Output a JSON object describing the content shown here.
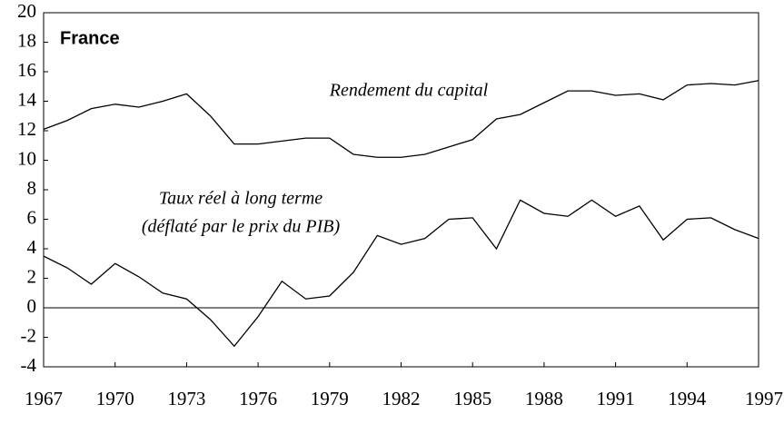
{
  "chart_data": {
    "type": "line",
    "title": "France",
    "annotations": [
      "Rendement du capital",
      "Taux réel à long terme",
      "(déflaté par le prix du PIB)"
    ],
    "x": [
      1967,
      1968,
      1969,
      1970,
      1971,
      1972,
      1973,
      1974,
      1975,
      1976,
      1977,
      1978,
      1979,
      1980,
      1981,
      1982,
      1983,
      1984,
      1985,
      1986,
      1987,
      1988,
      1989,
      1990,
      1991,
      1992,
      1993,
      1994,
      1995,
      1996,
      1997
    ],
    "series": [
      {
        "name": "Rendement du capital",
        "color": "#000000",
        "values": [
          12.1,
          12.7,
          13.5,
          13.8,
          13.6,
          14.0,
          14.5,
          13.0,
          11.1,
          11.1,
          11.3,
          11.5,
          11.5,
          10.4,
          10.2,
          10.2,
          10.4,
          10.9,
          11.4,
          12.8,
          13.1,
          13.9,
          14.7,
          14.7,
          14.4,
          14.5,
          14.1,
          15.1,
          15.2,
          15.1,
          15.4
        ]
      },
      {
        "name": "Taux réel à long terme",
        "color": "#000000",
        "values": [
          3.5,
          2.7,
          1.6,
          3.0,
          2.1,
          1.0,
          0.6,
          -0.8,
          -2.6,
          -0.6,
          1.8,
          0.6,
          0.8,
          2.4,
          4.9,
          4.3,
          4.7,
          6.0,
          6.1,
          4.0,
          7.3,
          6.4,
          6.2,
          7.3,
          6.2,
          6.9,
          4.6,
          6.0,
          6.1,
          5.3,
          4.7
        ]
      }
    ],
    "xlim": [
      1967,
      1997
    ],
    "xticks": [
      1967,
      1970,
      1973,
      1976,
      1979,
      1982,
      1985,
      1988,
      1991,
      1994,
      1997
    ],
    "ylim": [
      -4,
      20
    ],
    "yticks": [
      -4,
      -2,
      0,
      2,
      4,
      6,
      8,
      10,
      12,
      14,
      16,
      18,
      20
    ],
    "zero_line": true
  }
}
